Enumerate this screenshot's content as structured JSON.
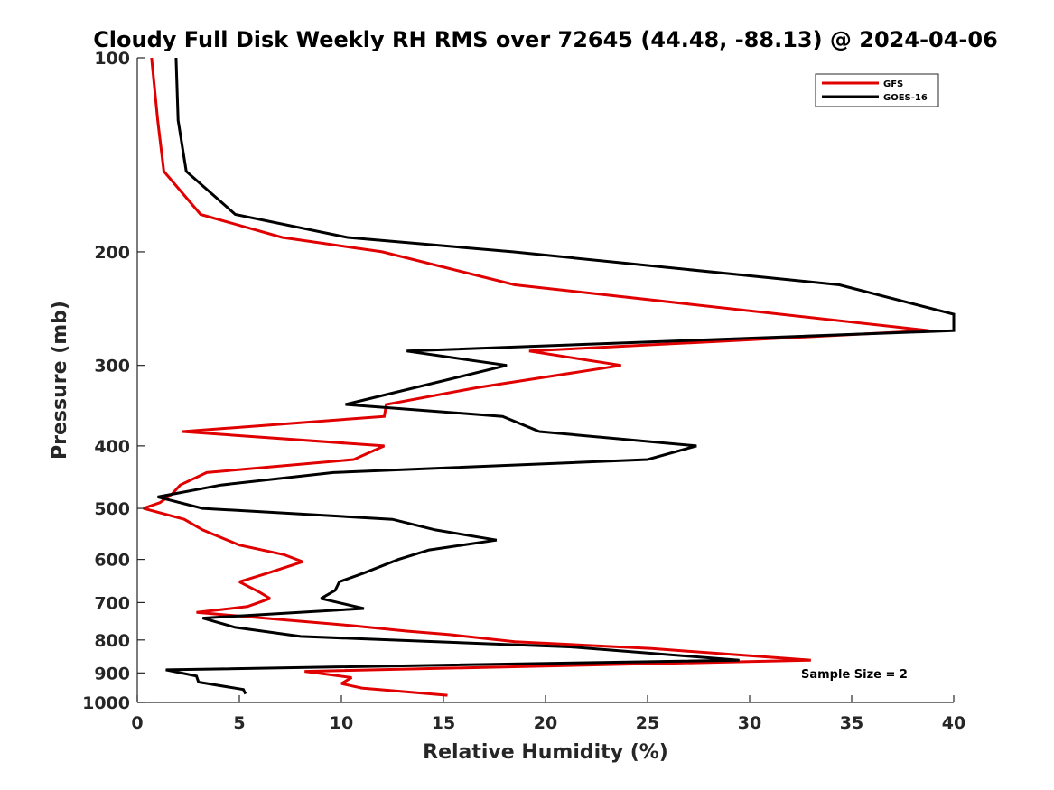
{
  "chart_data": {
    "type": "line",
    "title": "Cloudy Full Disk Weekly RH RMS over 72645 (44.48, -88.13) @ 2024-04-06",
    "xlabel": "Relative Humidity (%)",
    "ylabel": "Pressure (mb)",
    "xlim": [
      0,
      40
    ],
    "ylim": [
      100,
      1000
    ],
    "yscale": "log",
    "yreversed": true,
    "xticks": [
      "0",
      "5",
      "10",
      "15",
      "20",
      "25",
      "30",
      "35",
      "40"
    ],
    "yticks": [
      "100",
      "200",
      "300",
      "400",
      "500",
      "600",
      "700",
      "800",
      "900",
      "1000"
    ],
    "grid": false,
    "legend_position": "top-right",
    "annotation": "Sample Size = 2",
    "series": [
      {
        "name": "GFS",
        "color": "#e00000",
        "points": [
          [
            0.7,
            100
          ],
          [
            1.0,
            125
          ],
          [
            1.3,
            150
          ],
          [
            3.1,
            175
          ],
          [
            7.1,
            190
          ],
          [
            12.0,
            200
          ],
          [
            18.5,
            225
          ],
          [
            38.8,
            265
          ],
          [
            19.2,
            285
          ],
          [
            23.7,
            300
          ],
          [
            16.6,
            325
          ],
          [
            12.2,
            345
          ],
          [
            12.1,
            360
          ],
          [
            2.2,
            380
          ],
          [
            12.1,
            400
          ],
          [
            10.6,
            420
          ],
          [
            3.4,
            440
          ],
          [
            2.1,
            460
          ],
          [
            1.7,
            475
          ],
          [
            1.1,
            490
          ],
          [
            0.3,
            500
          ],
          [
            2.3,
            520
          ],
          [
            3.2,
            540
          ],
          [
            5.0,
            570
          ],
          [
            7.2,
            590
          ],
          [
            8.1,
            605
          ],
          [
            6.4,
            630
          ],
          [
            5.0,
            650
          ],
          [
            6.0,
            675
          ],
          [
            6.5,
            690
          ],
          [
            5.4,
            710
          ],
          [
            2.9,
            725
          ],
          [
            10.5,
            760
          ],
          [
            13.2,
            775
          ],
          [
            15.3,
            785
          ],
          [
            18.5,
            805
          ],
          [
            25.2,
            825
          ],
          [
            33.0,
            860
          ],
          [
            8.2,
            895
          ],
          [
            10.5,
            915
          ],
          [
            10.0,
            935
          ],
          [
            11.0,
            950
          ],
          [
            15.2,
            975
          ]
        ]
      },
      {
        "name": "GOES-16",
        "color": "#000000",
        "points": [
          [
            1.9,
            100
          ],
          [
            2.0,
            125
          ],
          [
            2.4,
            150
          ],
          [
            4.8,
            175
          ],
          [
            10.3,
            190
          ],
          [
            18.4,
            200
          ],
          [
            34.4,
            225
          ],
          [
            40.0,
            250
          ],
          [
            40.0,
            265
          ],
          [
            13.2,
            285
          ],
          [
            18.1,
            300
          ],
          [
            10.2,
            345
          ],
          [
            17.9,
            360
          ],
          [
            19.7,
            380
          ],
          [
            27.4,
            400
          ],
          [
            25.0,
            420
          ],
          [
            9.6,
            440
          ],
          [
            4.1,
            460
          ],
          [
            1.0,
            480
          ],
          [
            3.2,
            500
          ],
          [
            12.5,
            520
          ],
          [
            14.6,
            540
          ],
          [
            17.6,
            560
          ],
          [
            14.3,
            580
          ],
          [
            12.8,
            600
          ],
          [
            11.1,
            630
          ],
          [
            9.9,
            650
          ],
          [
            9.7,
            670
          ],
          [
            9.0,
            690
          ],
          [
            11.1,
            715
          ],
          [
            3.2,
            740
          ],
          [
            4.8,
            765
          ],
          [
            8.0,
            790
          ],
          [
            21.2,
            820
          ],
          [
            29.5,
            860
          ],
          [
            1.4,
            890
          ],
          [
            2.9,
            910
          ],
          [
            3.0,
            930
          ],
          [
            5.2,
            955
          ],
          [
            5.3,
            970
          ]
        ]
      }
    ]
  }
}
